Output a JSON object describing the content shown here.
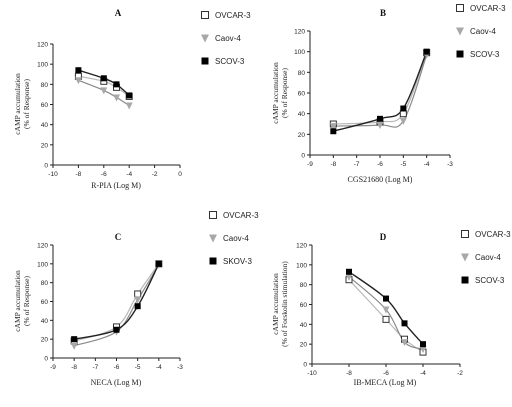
{
  "figure": {
    "series_names": [
      "OVCAR-3",
      "Caov-4",
      "SCOV-3"
    ],
    "series_colors": [
      "#ffffff",
      "#a8a8a8",
      "#000000"
    ],
    "series_markers": [
      "open-square",
      "down-triangle",
      "filled-square"
    ],
    "curve_colors": [
      "#b8b8b8",
      "#8a8a8a",
      "#222222"
    ]
  },
  "chart_data": [
    {
      "type": "line",
      "panel_label": "A",
      "xlabel": "R-PIA (Log M)",
      "ylabel": [
        "cAMP accumulation",
        "(% of Response)"
      ],
      "xlim": [
        -10,
        0
      ],
      "ylim": [
        0,
        120
      ],
      "xticks": [
        -10,
        -8,
        -6,
        -4,
        -2,
        0
      ],
      "yticks": [
        0,
        20,
        40,
        60,
        80,
        100,
        120
      ],
      "legend": [
        "OVCAR-3",
        "Caov-4",
        "SCOV-3"
      ],
      "series": [
        {
          "name": "OVCAR-3",
          "marker": "open-square",
          "x": [
            -8,
            -6,
            -5,
            -4
          ],
          "y": [
            88,
            83,
            77,
            68
          ]
        },
        {
          "name": "Caov-4",
          "marker": "down-triangle",
          "x": [
            -8,
            -6,
            -5,
            -4
          ],
          "y": [
            84,
            74,
            67,
            59
          ]
        },
        {
          "name": "SCOV-3",
          "marker": "filled-square",
          "x": [
            -8,
            -6,
            -5,
            -4
          ],
          "y": [
            94,
            86,
            80,
            69
          ]
        }
      ]
    },
    {
      "type": "line",
      "panel_label": "B",
      "xlabel": "CGS21680 (Log M)",
      "ylabel": [
        "cAMP accumulation",
        "(% of Response)"
      ],
      "xlim": [
        -9,
        -3
      ],
      "ylim": [
        0,
        120
      ],
      "xticks": [
        -9,
        -8,
        -7,
        -6,
        -5,
        -4,
        -3
      ],
      "yticks": [
        0,
        20,
        40,
        60,
        80,
        100,
        120
      ],
      "legend": [
        "OVCAR-3",
        "Caov-4",
        "SCOV-3"
      ],
      "series": [
        {
          "name": "OVCAR-3",
          "marker": "open-square",
          "x": [
            -8,
            -6,
            -5,
            -4
          ],
          "y": [
            30,
            32,
            40,
            99
          ]
        },
        {
          "name": "Caov-4",
          "marker": "down-triangle",
          "x": [
            -8,
            -6,
            -5,
            -4
          ],
          "y": [
            28,
            29,
            33,
            97
          ]
        },
        {
          "name": "SCOV-3",
          "marker": "filled-square",
          "x": [
            -8,
            -6,
            -5,
            -4
          ],
          "y": [
            23,
            35,
            45,
            100
          ]
        }
      ]
    },
    {
      "type": "line",
      "panel_label": "C",
      "xlabel": "NECA (Log M)",
      "ylabel": [
        "cAMP accumulation",
        "(% of Response)"
      ],
      "xlim": [
        -9,
        -3
      ],
      "ylim": [
        0,
        120
      ],
      "xticks": [
        -9,
        -8,
        -7,
        -6,
        -5,
        -4,
        -3
      ],
      "yticks": [
        0,
        20,
        40,
        60,
        80,
        100,
        120
      ],
      "legend": [
        "OVCAR-3",
        "Caov-4",
        "SKOV-3"
      ],
      "series": [
        {
          "name": "OVCAR-3",
          "marker": "open-square",
          "x": [
            -8,
            -6,
            -5,
            -4
          ],
          "y": [
            18,
            33,
            68,
            100
          ]
        },
        {
          "name": "Caov-4",
          "marker": "down-triangle",
          "x": [
            -8,
            -6,
            -5,
            -4
          ],
          "y": [
            13,
            28,
            62,
            99
          ]
        },
        {
          "name": "SKOV-3",
          "marker": "filled-square",
          "x": [
            -8,
            -6,
            -5,
            -4
          ],
          "y": [
            20,
            30,
            55,
            100
          ]
        }
      ]
    },
    {
      "type": "line",
      "panel_label": "D",
      "xlabel": "IB-MECA (Log M)",
      "ylabel": [
        "cAMP accumulation",
        "(% of Forskolin stimulation)"
      ],
      "xlim": [
        -10,
        -2
      ],
      "ylim": [
        0,
        120
      ],
      "xticks": [
        -10,
        -8,
        -6,
        -4,
        -2
      ],
      "yticks": [
        0,
        20,
        40,
        60,
        80,
        100,
        120
      ],
      "legend": [
        "OVCAR-3",
        "Caov-4",
        "SCOV-3"
      ],
      "series": [
        {
          "name": "OVCAR-3",
          "marker": "open-square",
          "x": [
            -8,
            -6,
            -5,
            -4
          ],
          "y": [
            85,
            45,
            25,
            12
          ]
        },
        {
          "name": "Caov-4",
          "marker": "down-triangle",
          "x": [
            -8,
            -6,
            -5,
            -4
          ],
          "y": [
            88,
            55,
            22,
            15
          ]
        },
        {
          "name": "SCOV-3",
          "marker": "filled-square",
          "x": [
            -8,
            -6,
            -5,
            -4
          ],
          "y": [
            93,
            66,
            41,
            20
          ]
        }
      ]
    }
  ]
}
